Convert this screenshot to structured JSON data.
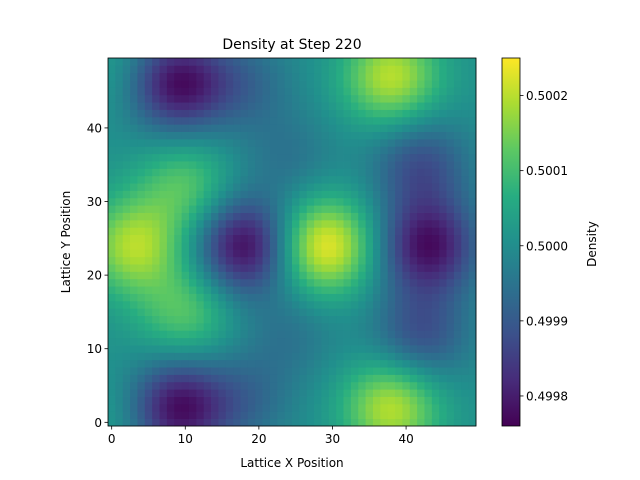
{
  "chart_data": {
    "type": "heatmap",
    "title": "Density at Step 220",
    "xlabel": "Lattice X Position",
    "ylabel": "Lattice Y Position",
    "colorbar_label": "Density",
    "colormap": "viridis",
    "grid": false,
    "grid_size": [
      50,
      50
    ],
    "xlim": [
      -0.5,
      49.5
    ],
    "ylim": [
      -0.5,
      49.5
    ],
    "x_ticks": [
      0,
      10,
      20,
      30,
      40
    ],
    "x_tick_labels": [
      "0",
      "10",
      "20",
      "30",
      "40"
    ],
    "y_ticks": [
      0,
      10,
      20,
      30,
      40
    ],
    "y_tick_labels": [
      "0",
      "10",
      "20",
      "30",
      "40"
    ],
    "value_range": [
      0.49976,
      0.50025
    ],
    "colorbar_ticks": [
      0.4998,
      0.4999,
      0.5,
      0.5001,
      0.5002
    ],
    "colorbar_tick_labels": [
      "0.4998",
      "0.4999",
      "0.5000",
      "0.5001",
      "0.5002"
    ],
    "features": [
      {
        "x": 29,
        "y": 24,
        "value": 0.50024
      },
      {
        "x": 3,
        "y": 24,
        "value": 0.50019
      },
      {
        "x": 18,
        "y": 24,
        "value": 0.49977
      },
      {
        "x": 43,
        "y": 24,
        "value": 0.49978
      },
      {
        "x": 38,
        "y": 47,
        "value": 0.5002
      },
      {
        "x": 38,
        "y": 2,
        "value": 0.5002
      },
      {
        "x": 9,
        "y": 46,
        "value": 0.49978
      },
      {
        "x": 9,
        "y": 2,
        "value": 0.49978
      },
      {
        "x": 10,
        "y": 32,
        "value": 0.50012
      },
      {
        "x": 10,
        "y": 15,
        "value": 0.50012
      },
      {
        "x": 18,
        "y": 46,
        "value": 0.49993
      },
      {
        "x": 18,
        "y": 3,
        "value": 0.49993
      },
      {
        "x": 42,
        "y": 35,
        "value": 0.49988
      },
      {
        "x": 42,
        "y": 12,
        "value": 0.49988
      },
      {
        "x": 0,
        "y": 48,
        "value": 0.50004
      },
      {
        "x": 0,
        "y": 1,
        "value": 0.50004
      },
      {
        "x": 24,
        "y": 36,
        "value": 0.49995
      },
      {
        "x": 24,
        "y": 12,
        "value": 0.49995
      }
    ]
  }
}
